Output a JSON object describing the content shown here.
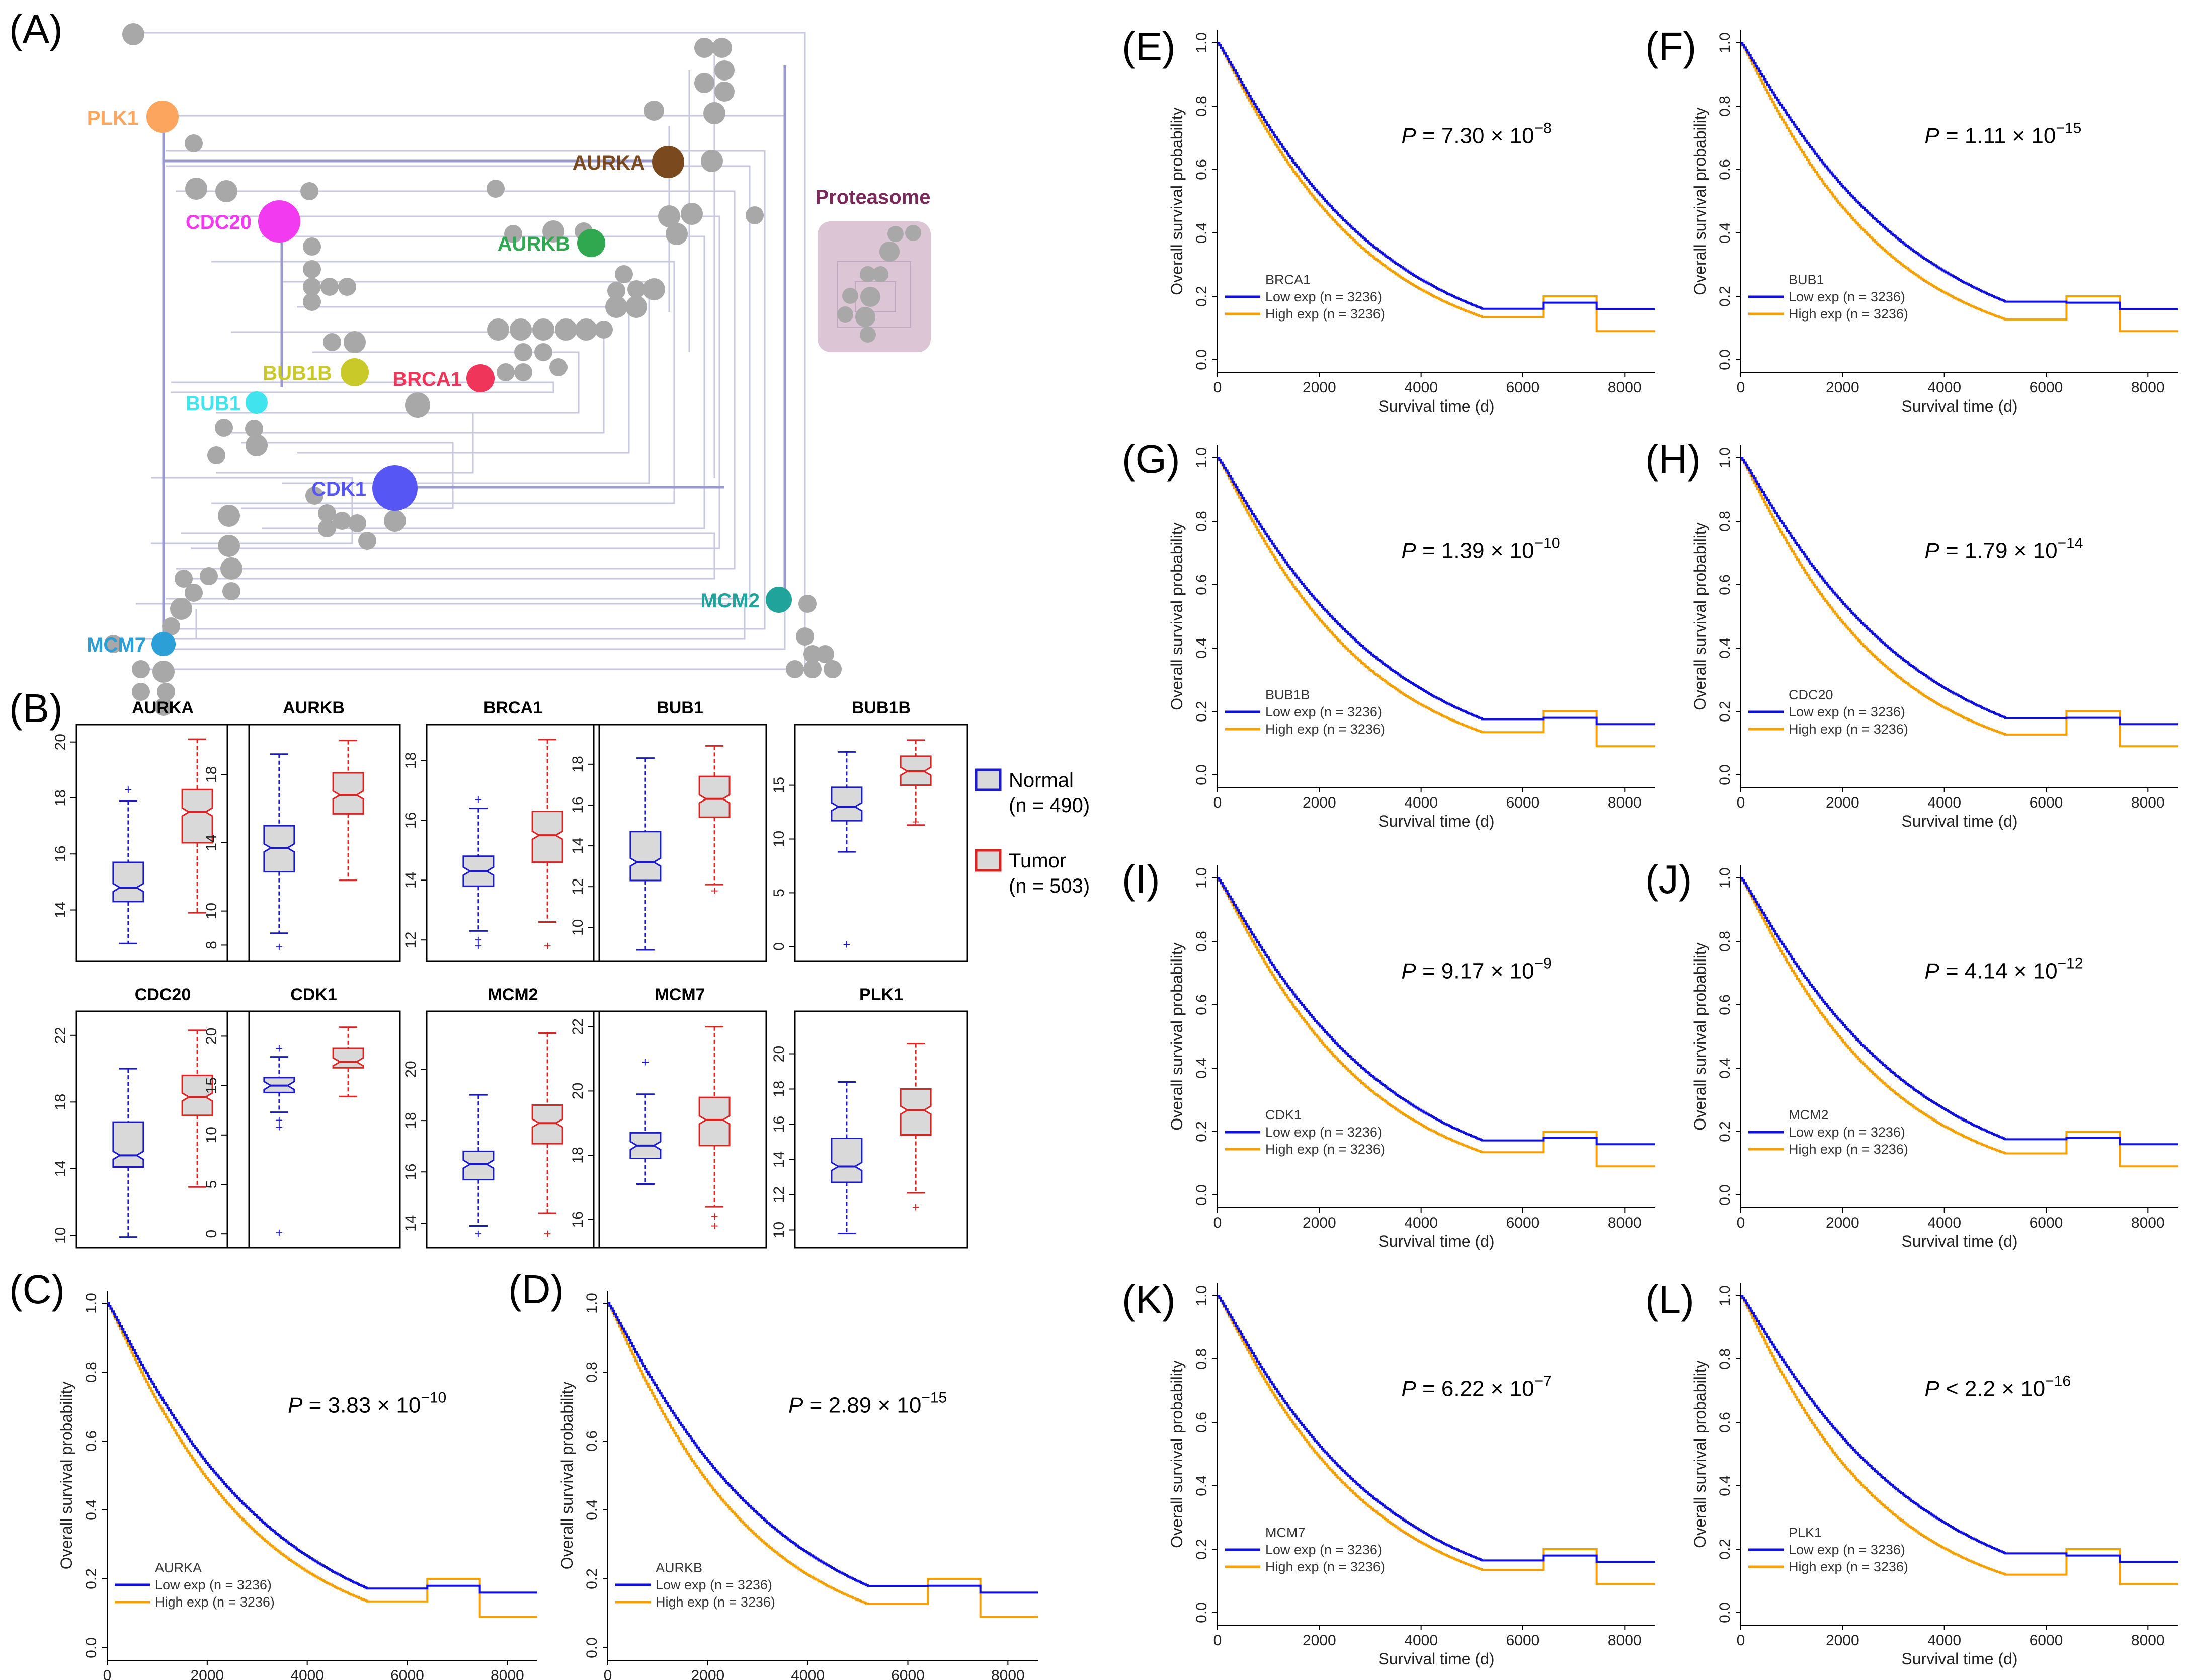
{
  "panels": {
    "A": "(A)",
    "B": "(B)",
    "C": "(C)",
    "D": "(D)",
    "E": "(E)",
    "F": "(F)",
    "G": "(G)",
    "H": "(H)",
    "I": "(I)",
    "J": "(J)",
    "K": "(K)",
    "L": "(L)"
  },
  "network": {
    "cluster_label": "Proteasome",
    "genes": [
      {
        "name": "PLK1",
        "color": "#FBA55F"
      },
      {
        "name": "AURKA",
        "color": "#7A4A1E"
      },
      {
        "name": "CDC20",
        "color": "#F23BF0"
      },
      {
        "name": "AURKB",
        "color": "#2FA84F"
      },
      {
        "name": "BUB1B",
        "color": "#C9C92A"
      },
      {
        "name": "BRCA1",
        "color": "#F0355A"
      },
      {
        "name": "BUB1",
        "color": "#3FE4EE"
      },
      {
        "name": "CDK1",
        "color": "#5656F5"
      },
      {
        "name": "MCM2",
        "color": "#1FA39A"
      },
      {
        "name": "MCM7",
        "color": "#2B9FD6"
      }
    ]
  },
  "chart_data": [
    {
      "type": "boxplot",
      "panel": "B",
      "legend": [
        {
          "label": "Normal",
          "sub": "(n = 490)",
          "color": "#1a1acc"
        },
        {
          "label": "Tumor",
          "sub": "(n = 503)",
          "color": "#dd2222"
        }
      ],
      "plots": [
        {
          "gene": "AURKA",
          "ylim": [
            12.5,
            20.3
          ],
          "ticks": [
            14,
            16,
            18,
            20
          ],
          "normal": {
            "min": 12.8,
            "q1": 14.3,
            "med": 14.8,
            "q3": 15.7,
            "max": 17.9,
            "out": [
              18.3
            ]
          },
          "tumor": {
            "min": 13.9,
            "q1": 16.4,
            "med": 17.5,
            "q3": 18.3,
            "max": 20.1,
            "out": []
          }
        },
        {
          "gene": "AURKB",
          "ylim": [
            7.6,
            20.4
          ],
          "ticks": [
            8,
            10,
            14,
            18
          ],
          "normal": {
            "min": 8.7,
            "q1": 12.3,
            "med": 13.7,
            "q3": 15.0,
            "max": 19.2,
            "out": [
              7.9
            ]
          },
          "tumor": {
            "min": 11.8,
            "q1": 15.7,
            "med": 16.8,
            "q3": 18.1,
            "max": 20.0,
            "out": []
          }
        },
        {
          "gene": "BRCA1",
          "ylim": [
            11.6,
            18.9
          ],
          "ticks": [
            12,
            14,
            16,
            18
          ],
          "normal": {
            "min": 12.3,
            "q1": 13.8,
            "med": 14.3,
            "q3": 14.8,
            "max": 16.4,
            "out": [
              16.7,
              12.0,
              11.8
            ]
          },
          "tumor": {
            "min": 12.6,
            "q1": 14.6,
            "med": 15.5,
            "q3": 16.3,
            "max": 18.7,
            "out": [
              11.8
            ]
          }
        },
        {
          "gene": "BUB1",
          "ylim": [
            8.8,
            19.5
          ],
          "ticks": [
            10,
            12,
            14,
            16,
            18
          ],
          "normal": {
            "min": 8.9,
            "q1": 12.3,
            "med": 13.2,
            "q3": 14.7,
            "max": 18.3,
            "out": []
          },
          "tumor": {
            "min": 12.1,
            "q1": 15.4,
            "med": 16.3,
            "q3": 17.4,
            "max": 18.9,
            "out": [
              11.8
            ]
          }
        },
        {
          "gene": "BUB1B",
          "ylim": [
            -0.5,
            19.8
          ],
          "ticks": [
            0,
            5,
            10,
            15
          ],
          "normal": {
            "min": 8.8,
            "q1": 11.7,
            "med": 13.0,
            "q3": 14.8,
            "max": 18.1,
            "out": [
              0.2
            ]
          },
          "tumor": {
            "min": 11.3,
            "q1": 15.0,
            "med": 16.3,
            "q3": 17.7,
            "max": 19.2,
            "out": [
              11.6
            ]
          }
        },
        {
          "gene": "CDC20",
          "ylim": [
            9.8,
            22.9
          ],
          "ticks": [
            10,
            14,
            18,
            22
          ],
          "normal": {
            "min": 9.9,
            "q1": 14.1,
            "med": 14.8,
            "q3": 16.8,
            "max": 20.0,
            "out": []
          },
          "tumor": {
            "min": 12.9,
            "q1": 17.2,
            "med": 18.3,
            "q3": 19.6,
            "max": 22.3,
            "out": []
          }
        },
        {
          "gene": "CDK1",
          "ylim": [
            -0.5,
            21.6
          ],
          "ticks": [
            0,
            5,
            10,
            15,
            20
          ],
          "normal": {
            "min": 12.3,
            "q1": 14.3,
            "med": 15.0,
            "q3": 15.8,
            "max": 17.9,
            "out": [
              18.8,
              11.5,
              10.8,
              0.1
            ]
          },
          "tumor": {
            "min": 13.9,
            "q1": 16.8,
            "med": 17.4,
            "q3": 18.8,
            "max": 20.9,
            "out": []
          }
        },
        {
          "gene": "MCM2",
          "ylim": [
            13.4,
            21.9
          ],
          "ticks": [
            14,
            16,
            18,
            20
          ],
          "normal": {
            "min": 13.9,
            "q1": 15.7,
            "med": 16.3,
            "q3": 16.8,
            "max": 19.0,
            "out": [
              13.6
            ]
          },
          "tumor": {
            "min": 14.4,
            "q1": 17.1,
            "med": 17.9,
            "q3": 18.6,
            "max": 21.4,
            "out": [
              13.6
            ]
          }
        },
        {
          "gene": "MCM7",
          "ylim": [
            15.4,
            22.2
          ],
          "ticks": [
            16,
            18,
            20,
            22
          ],
          "normal": {
            "min": 17.1,
            "q1": 17.9,
            "med": 18.3,
            "q3": 18.7,
            "max": 19.9,
            "out": [
              20.9
            ]
          },
          "tumor": {
            "min": 16.4,
            "q1": 18.3,
            "med": 19.1,
            "q3": 19.8,
            "max": 22.0,
            "out": [
              16.1,
              15.8
            ]
          }
        },
        {
          "gene": "PLK1",
          "ylim": [
            9.5,
            21.9
          ],
          "ticks": [
            10,
            12,
            14,
            16,
            18,
            20
          ],
          "normal": {
            "min": 9.8,
            "q1": 12.7,
            "med": 13.6,
            "q3": 15.2,
            "max": 18.4,
            "out": []
          },
          "tumor": {
            "min": 12.1,
            "q1": 15.4,
            "med": 16.8,
            "q3": 18.0,
            "max": 20.6,
            "out": [
              11.3
            ]
          }
        }
      ]
    },
    {
      "type": "km_survival",
      "xlabel": "Survival time (d)",
      "ylabel": "Overall survival probability",
      "xlim": [
        0,
        8600
      ],
      "ylim": [
        0,
        1
      ],
      "xticks": [
        0,
        2000,
        4000,
        6000,
        8000
      ],
      "yticks": [
        "0.0",
        "0.2",
        "0.4",
        "0.6",
        "0.8",
        "1.0"
      ],
      "legend_low": "Low exp (n = 3236)",
      "legend_high": "High exp (n = 3236)",
      "low_color": "#1010dd",
      "high_color": "#F5A000",
      "panels": [
        {
          "panel": "C",
          "gene": "AURKA",
          "p_prefix": "P",
          "p_rel": " = 3.83 × 10",
          "p_exp": "−10",
          "low_fast": 0.52,
          "high_fast": 0.62
        },
        {
          "panel": "D",
          "gene": "AURKB",
          "p_prefix": "P",
          "p_rel": " = 2.89 × 10",
          "p_exp": "−15",
          "low_fast": 0.5,
          "high_fast": 0.64
        },
        {
          "panel": "E",
          "gene": "BRCA1",
          "p_prefix": "P",
          "p_rel": " = 7.30 × 10",
          "p_exp": "−8",
          "low_fast": 0.55,
          "high_fast": 0.62
        },
        {
          "panel": "F",
          "gene": "BUB1",
          "p_prefix": "P",
          "p_rel": " = 1.11 × 10",
          "p_exp": "−15",
          "low_fast": 0.49,
          "high_fast": 0.64
        },
        {
          "panel": "G",
          "gene": "BUB1B",
          "p_prefix": "P",
          "p_rel": " = 1.39 × 10",
          "p_exp": "−10",
          "low_fast": 0.51,
          "high_fast": 0.62
        },
        {
          "panel": "H",
          "gene": "CDC20",
          "p_prefix": "P",
          "p_rel": " = 1.79 × 10",
          "p_exp": "−14",
          "low_fast": 0.5,
          "high_fast": 0.64
        },
        {
          "panel": "I",
          "gene": "CDK1",
          "p_prefix": "P",
          "p_rel": " = 9.17 × 10",
          "p_exp": "−9",
          "low_fast": 0.52,
          "high_fast": 0.62
        },
        {
          "panel": "J",
          "gene": "MCM2",
          "p_prefix": "P",
          "p_rel": " = 4.14 × 10",
          "p_exp": "−12",
          "low_fast": 0.51,
          "high_fast": 0.63
        },
        {
          "panel": "K",
          "gene": "MCM7",
          "p_prefix": "P",
          "p_rel": " = 6.22 × 10",
          "p_exp": "−7",
          "low_fast": 0.54,
          "high_fast": 0.62
        },
        {
          "panel": "L",
          "gene": "PLK1",
          "p_prefix": "P",
          "p_rel": " < 2.2 × 10",
          "p_exp": "−16",
          "low_fast": 0.48,
          "high_fast": 0.66
        }
      ]
    }
  ]
}
